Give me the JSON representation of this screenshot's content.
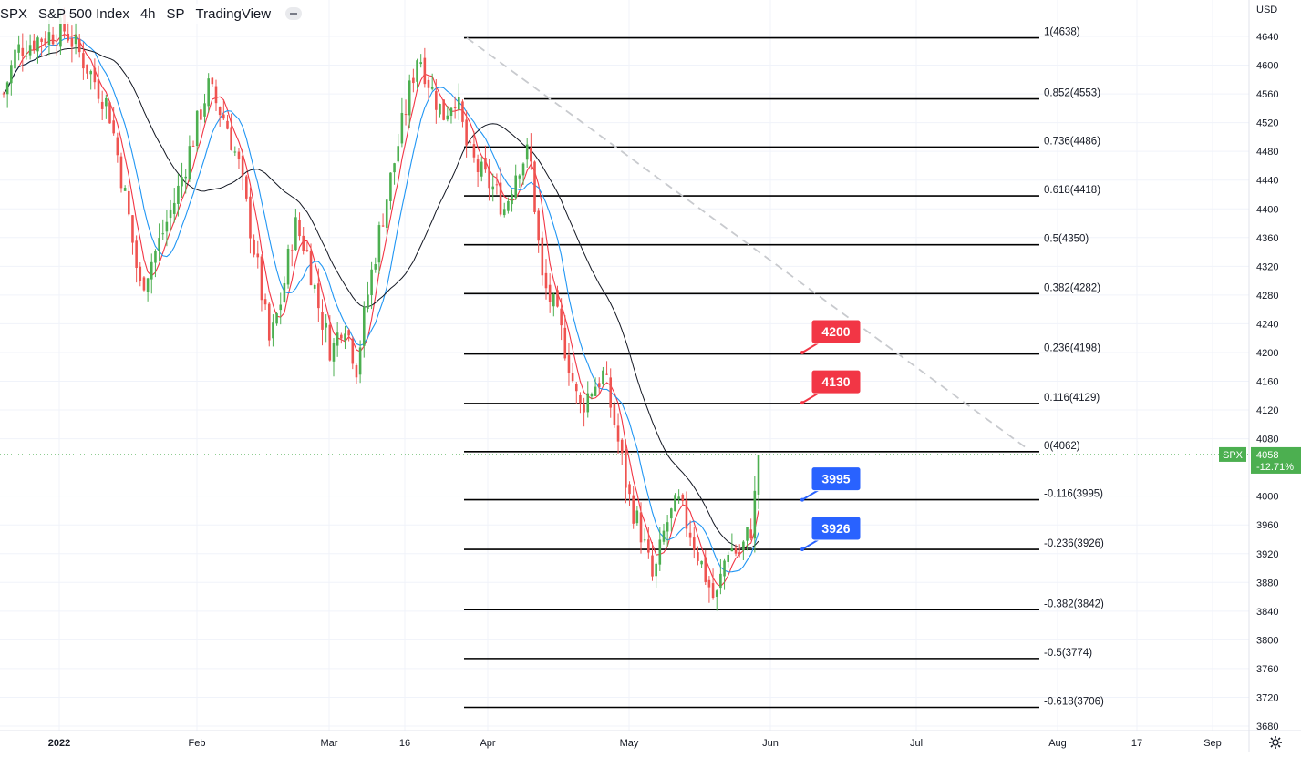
{
  "header": {
    "symbol": "SPX",
    "name": "S&P 500 Index",
    "interval": "4h",
    "exchange": "SP",
    "source": "TradingView",
    "dot": "·"
  },
  "price_scale": {
    "currency": "USD",
    "ticks": [
      "4640",
      "4600",
      "4560",
      "4520",
      "4480",
      "4440",
      "4400",
      "4360",
      "4320",
      "4280",
      "4240",
      "4200",
      "4160",
      "4120",
      "4080",
      "4000",
      "3960",
      "3920",
      "3880",
      "3840",
      "3800",
      "3760",
      "3720",
      "3680"
    ],
    "last_price": "4058",
    "last_change": "-12.71%",
    "symbol_tag": "SPX"
  },
  "time_scale": {
    "labels": [
      "2022",
      "Feb",
      "Mar",
      "16",
      "Apr",
      "May",
      "Jun",
      "Jul",
      "Aug",
      "17",
      "Sep"
    ]
  },
  "chart_data": {
    "type": "candlestick",
    "symbol": "SPX",
    "interval": "4h",
    "ylim": [
      3660,
      4680
    ],
    "colors": {
      "up": "#26a69a",
      "up_candle": "#4caf50",
      "down": "#ef5350",
      "sma_fast": "#f23645",
      "sma_mid": "#2196f3",
      "sma_slow": "#131722",
      "fib_line": "#000000",
      "trend_dashed": "#c8cace",
      "target_red": "#f23645",
      "target_blue": "#2962ff",
      "last_price_tag": "#4caf50"
    },
    "fibonacci": [
      {
        "label": "1(4638)",
        "ratio": "1",
        "price": 4638
      },
      {
        "label": "0.852(4553)",
        "ratio": "0.852",
        "price": 4553
      },
      {
        "label": "0.736(4486)",
        "ratio": "0.736",
        "price": 4486
      },
      {
        "label": "0.618(4418)",
        "ratio": "0.618",
        "price": 4418
      },
      {
        "label": "0.5(4350)",
        "ratio": "0.5",
        "price": 4350
      },
      {
        "label": "0.382(4282)",
        "ratio": "0.382",
        "price": 4282
      },
      {
        "label": "0.236(4198)",
        "ratio": "0.236",
        "price": 4198
      },
      {
        "label": "0.116(4129)",
        "ratio": "0.116",
        "price": 4129
      },
      {
        "label": "0(4062)",
        "ratio": "0",
        "price": 4062
      },
      {
        "label": "-0.116(3995)",
        "ratio": "-0.116",
        "price": 3995
      },
      {
        "label": "-0.236(3926)",
        "ratio": "-0.236",
        "price": 3926
      },
      {
        "label": "-0.382(3842)",
        "ratio": "-0.382",
        "price": 3842
      },
      {
        "label": "-0.5(3774)",
        "ratio": "-0.5",
        "price": 3774
      },
      {
        "label": "-0.618(3706)",
        "ratio": "-0.618",
        "price": 3706
      }
    ],
    "targets": [
      {
        "label": "4200",
        "price": 4200,
        "color": "red"
      },
      {
        "label": "4130",
        "price": 4130,
        "color": "red"
      },
      {
        "label": "3995",
        "price": 3995,
        "color": "blue"
      },
      {
        "label": "3926",
        "price": 3926,
        "color": "blue"
      }
    ],
    "trendline": {
      "from_price": 4638,
      "to_price": 4065,
      "style": "dashed"
    },
    "last_close": 4058,
    "anchors": [
      {
        "t": 0,
        "p": 4560
      },
      {
        "t": 2,
        "p": 4620
      },
      {
        "t": 5,
        "p": 4635
      },
      {
        "t": 10,
        "p": 4650
      },
      {
        "t": 14,
        "p": 4590
      },
      {
        "t": 17,
        "p": 4540
      },
      {
        "t": 20,
        "p": 4400
      },
      {
        "t": 22,
        "p": 4290
      },
      {
        "t": 25,
        "p": 4350
      },
      {
        "t": 28,
        "p": 4420
      },
      {
        "t": 31,
        "p": 4510
      },
      {
        "t": 33,
        "p": 4570
      },
      {
        "t": 36,
        "p": 4520
      },
      {
        "t": 38,
        "p": 4460
      },
      {
        "t": 41,
        "p": 4320
      },
      {
        "t": 43,
        "p": 4210
      },
      {
        "t": 45,
        "p": 4280
      },
      {
        "t": 47,
        "p": 4380
      },
      {
        "t": 49,
        "p": 4340
      },
      {
        "t": 51,
        "p": 4260
      },
      {
        "t": 53,
        "p": 4200
      },
      {
        "t": 55,
        "p": 4250
      },
      {
        "t": 57,
        "p": 4180
      },
      {
        "t": 59,
        "p": 4290
      },
      {
        "t": 61,
        "p": 4380
      },
      {
        "t": 63,
        "p": 4460
      },
      {
        "t": 65,
        "p": 4540
      },
      {
        "t": 67,
        "p": 4620
      },
      {
        "t": 69,
        "p": 4570
      },
      {
        "t": 71,
        "p": 4530
      },
      {
        "t": 73,
        "p": 4560
      },
      {
        "t": 75,
        "p": 4480
      },
      {
        "t": 77,
        "p": 4450
      },
      {
        "t": 79,
        "p": 4430
      },
      {
        "t": 81,
        "p": 4400
      },
      {
        "t": 83,
        "p": 4460
      },
      {
        "t": 85,
        "p": 4480
      },
      {
        "t": 87,
        "p": 4300
      },
      {
        "t": 89,
        "p": 4260
      },
      {
        "t": 91,
        "p": 4200
      },
      {
        "t": 93,
        "p": 4120
      },
      {
        "t": 95,
        "p": 4150
      },
      {
        "t": 97,
        "p": 4170
      },
      {
        "t": 99,
        "p": 4090
      },
      {
        "t": 101,
        "p": 4000
      },
      {
        "t": 103,
        "p": 3950
      },
      {
        "t": 105,
        "p": 3880
      },
      {
        "t": 107,
        "p": 3960
      },
      {
        "t": 109,
        "p": 3990
      },
      {
        "t": 111,
        "p": 3950
      },
      {
        "t": 113,
        "p": 3900
      },
      {
        "t": 115,
        "p": 3850
      },
      {
        "t": 117,
        "p": 3930
      },
      {
        "t": 119,
        "p": 3920
      },
      {
        "t": 121,
        "p": 3960
      },
      {
        "t": 122,
        "p": 4058
      }
    ]
  }
}
